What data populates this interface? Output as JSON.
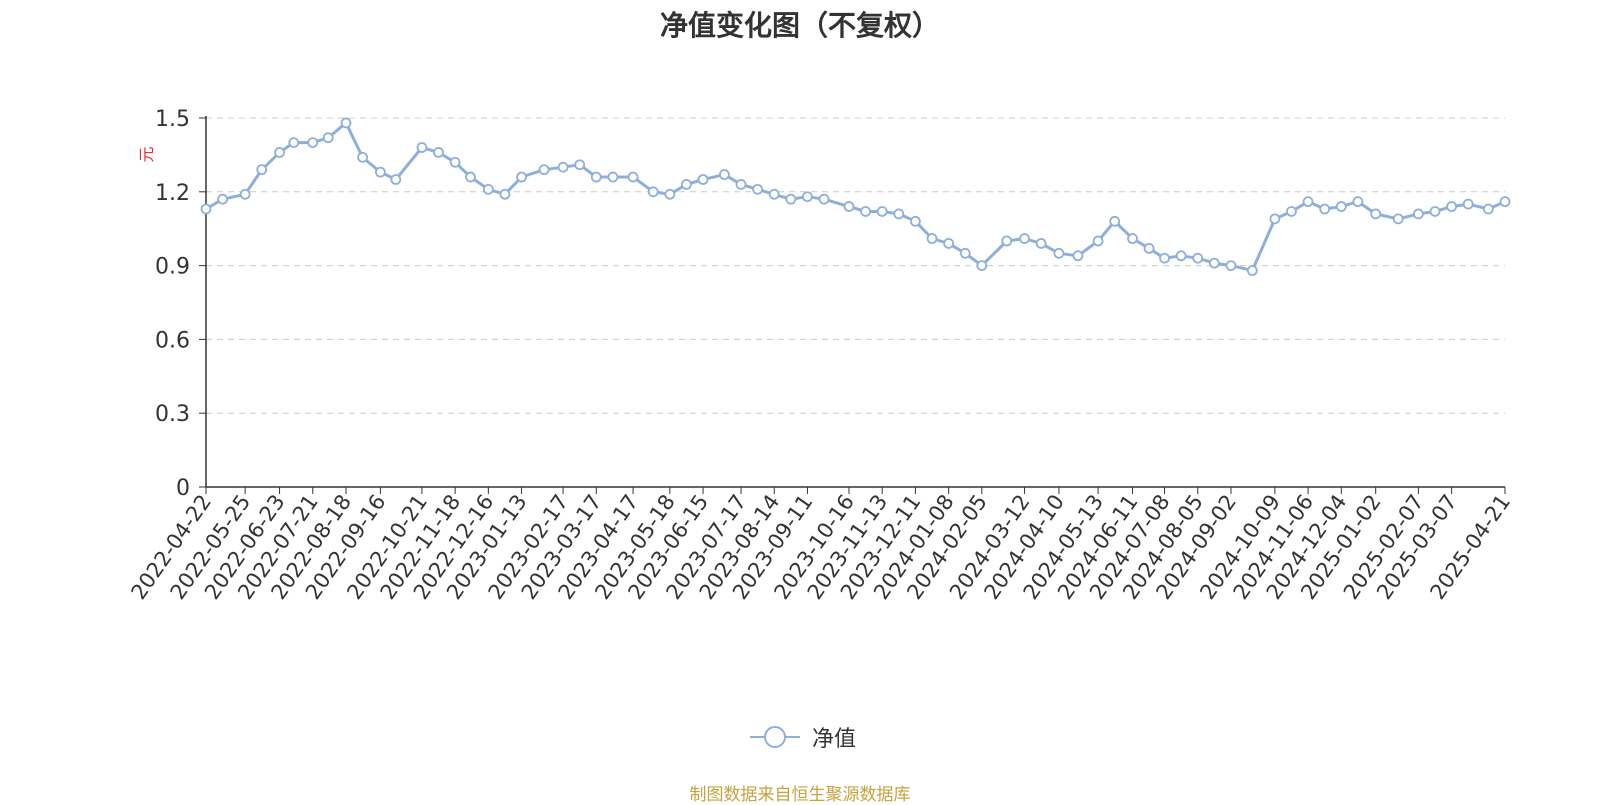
{
  "title": "净值变化图（不复权）",
  "source_note": "制图数据来自恒生聚源数据库",
  "colors": {
    "line": "#8eafdc",
    "grid": "#cccccc",
    "axis": "#333333",
    "ylabel": "#e03030",
    "source": "#c8a23c"
  },
  "chart_data": {
    "type": "line",
    "title": "净值变化图（不复权）",
    "xlabel": "",
    "ylabel": "元",
    "ylim": [
      0,
      1.5
    ],
    "yticks": [
      0,
      0.3,
      0.6,
      0.9,
      1.2,
      1.5
    ],
    "grid": true,
    "legend_position": "bottom-center",
    "x_tick_labels": [
      "2022-04-22",
      "2022-05-25",
      "2022-06-23",
      "2022-07-21",
      "2022-08-18",
      "2022-09-16",
      "2022-10-21",
      "2022-11-18",
      "2022-12-16",
      "2023-01-13",
      "2023-02-17",
      "2023-03-17",
      "2023-04-17",
      "2023-05-18",
      "2023-06-15",
      "2023-07-17",
      "2023-08-14",
      "2023-09-11",
      "2023-10-16",
      "2023-11-13",
      "2023-12-11",
      "2024-01-08",
      "2024-02-05",
      "2024-03-12",
      "2024-04-10",
      "2024-05-13",
      "2024-06-11",
      "2024-07-08",
      "2024-08-05",
      "2024-09-02",
      "2024-10-09",
      "2024-11-06",
      "2024-12-04",
      "2025-01-02",
      "2025-02-07",
      "2025-03-07",
      "2025-04-21"
    ],
    "series": [
      {
        "name": "净值",
        "color": "#8eafdc",
        "x": [
          "2022-04-22",
          "2022-05-06",
          "2022-05-25",
          "2022-06-08",
          "2022-06-23",
          "2022-07-05",
          "2022-07-21",
          "2022-08-03",
          "2022-08-18",
          "2022-09-01",
          "2022-09-16",
          "2022-09-29",
          "2022-10-21",
          "2022-11-04",
          "2022-11-18",
          "2022-12-01",
          "2022-12-16",
          "2022-12-30",
          "2023-01-13",
          "2023-02-01",
          "2023-02-17",
          "2023-03-03",
          "2023-03-17",
          "2023-03-31",
          "2023-04-17",
          "2023-05-04",
          "2023-05-18",
          "2023-06-01",
          "2023-06-15",
          "2023-07-03",
          "2023-07-17",
          "2023-07-31",
          "2023-08-14",
          "2023-08-28",
          "2023-09-11",
          "2023-09-25",
          "2023-10-16",
          "2023-10-30",
          "2023-11-13",
          "2023-11-27",
          "2023-12-11",
          "2023-12-25",
          "2024-01-08",
          "2024-01-22",
          "2024-02-05",
          "2024-02-26",
          "2024-03-12",
          "2024-03-26",
          "2024-04-10",
          "2024-04-26",
          "2024-05-13",
          "2024-05-27",
          "2024-06-11",
          "2024-06-25",
          "2024-07-08",
          "2024-07-22",
          "2024-08-05",
          "2024-08-19",
          "2024-09-02",
          "2024-09-20",
          "2024-10-09",
          "2024-10-23",
          "2024-11-06",
          "2024-11-20",
          "2024-12-04",
          "2024-12-18",
          "2025-01-02",
          "2025-01-21",
          "2025-02-07",
          "2025-02-21",
          "2025-03-07",
          "2025-03-21",
          "2025-04-07",
          "2025-04-21"
        ],
        "values": [
          1.13,
          1.17,
          1.19,
          1.29,
          1.36,
          1.4,
          1.4,
          1.42,
          1.48,
          1.34,
          1.28,
          1.25,
          1.38,
          1.36,
          1.32,
          1.26,
          1.21,
          1.19,
          1.26,
          1.29,
          1.3,
          1.31,
          1.26,
          1.26,
          1.26,
          1.2,
          1.19,
          1.23,
          1.25,
          1.27,
          1.23,
          1.21,
          1.19,
          1.17,
          1.18,
          1.17,
          1.14,
          1.12,
          1.12,
          1.11,
          1.08,
          1.01,
          0.99,
          0.95,
          0.9,
          1.0,
          1.01,
          0.99,
          0.95,
          0.94,
          1.0,
          1.08,
          1.01,
          0.97,
          0.93,
          0.94,
          0.93,
          0.91,
          0.9,
          0.88,
          1.09,
          1.12,
          1.16,
          1.13,
          1.14,
          1.16,
          1.11,
          1.09,
          1.11,
          1.12,
          1.14,
          1.15,
          1.13,
          1.16
        ]
      }
    ]
  }
}
